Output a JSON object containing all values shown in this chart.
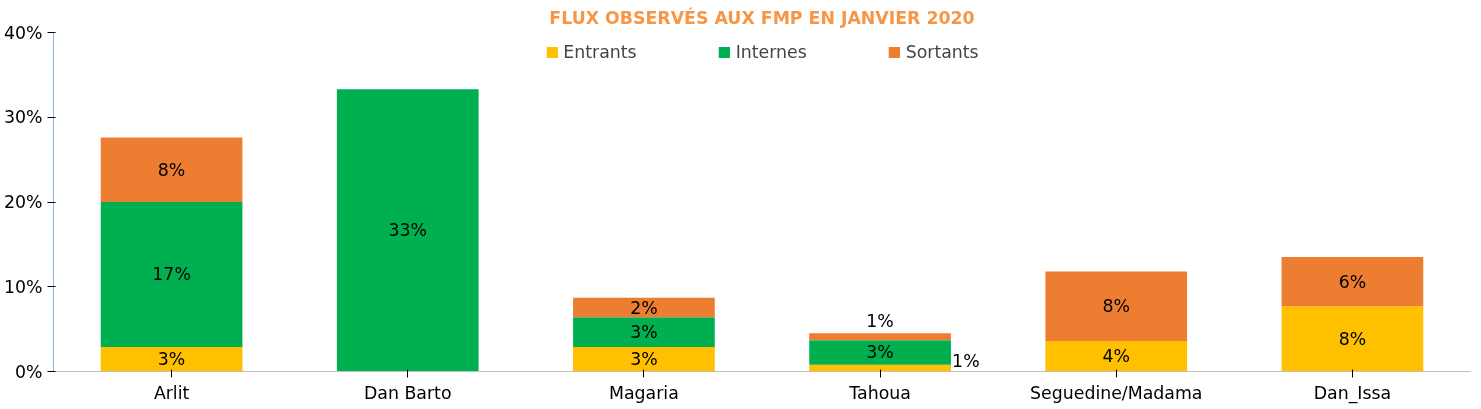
{
  "chart_data": {
    "type": "bar",
    "stacked": true,
    "title": "FLUX OBSERVÉS AUX FMP EN JANVIER 2020",
    "categories": [
      "Arlit",
      "Dan Barto",
      "Magaria",
      "Tahoua",
      "Seguedine/Madama",
      "Dan_Issa"
    ],
    "series": [
      {
        "name": "Entrants",
        "color": "#ffc000",
        "values": [
          2.9,
          null,
          2.9,
          0.8,
          3.6,
          7.7
        ],
        "value_labels": [
          "3%",
          null,
          "3%",
          "1%",
          "4%",
          "8%"
        ]
      },
      {
        "name": "Internes",
        "color": "#00b050",
        "values": [
          17.1,
          33.3,
          3.5,
          2.9,
          null,
          null
        ],
        "value_labels": [
          "17%",
          "33%",
          "3%",
          "3%",
          null,
          null
        ]
      },
      {
        "name": "Sortants",
        "color": "#ed7d31",
        "values": [
          7.6,
          null,
          2.3,
          0.8,
          8.2,
          5.8
        ],
        "value_labels": [
          "8%",
          null,
          "2%",
          "1%",
          "8%",
          "6%"
        ]
      }
    ],
    "ylim": [
      0,
      40
    ],
    "yticks": [
      {
        "value": 0,
        "label": "0%"
      },
      {
        "value": 10,
        "label": "10%"
      },
      {
        "value": 20,
        "label": "20%"
      },
      {
        "value": 30,
        "label": "30%"
      },
      {
        "value": 40,
        "label": "40%"
      }
    ],
    "grid": false,
    "legend": "top"
  }
}
